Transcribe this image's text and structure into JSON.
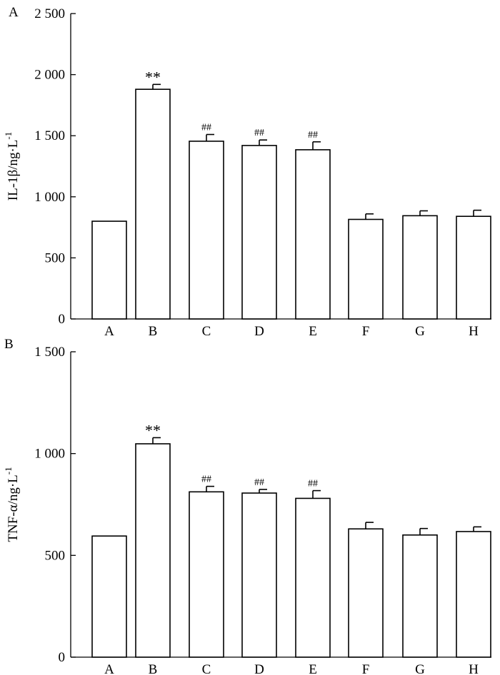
{
  "chart_data": [
    {
      "panel": "A",
      "type": "bar",
      "ylabel": "IL-1β/ng·L",
      "ylabel_superscript": "-1",
      "ylim": [
        0,
        2500
      ],
      "yticks": [
        0,
        500,
        1000,
        1500,
        2000,
        2500
      ],
      "ytick_labels": [
        "0",
        "500",
        "1 000",
        "1 500",
        "2 000",
        "2 500"
      ],
      "categories": [
        "A",
        "B",
        "C",
        "D",
        "E",
        "F",
        "G",
        "H"
      ],
      "values": [
        800,
        1880,
        1455,
        1420,
        1385,
        815,
        845,
        840
      ],
      "errors": [
        0,
        40,
        55,
        45,
        65,
        45,
        40,
        50
      ],
      "annotations": [
        "",
        "**",
        "##",
        "##",
        "##",
        "",
        "",
        ""
      ],
      "grid": false
    },
    {
      "panel": "B",
      "type": "bar",
      "ylabel": "TNF-α/ng·L",
      "ylabel_superscript": "-1",
      "ylim": [
        0,
        1500
      ],
      "yticks": [
        0,
        500,
        1000,
        1500
      ],
      "ytick_labels": [
        "0",
        "500",
        "1 000",
        "1 500"
      ],
      "categories": [
        "A",
        "B",
        "C",
        "D",
        "E",
        "F",
        "G",
        "H"
      ],
      "values": [
        595,
        1048,
        812,
        806,
        780,
        630,
        600,
        617
      ],
      "errors": [
        0,
        30,
        27,
        18,
        38,
        32,
        32,
        23
      ],
      "annotations": [
        "",
        "**",
        "##",
        "##",
        "##",
        "",
        "",
        ""
      ],
      "grid": false
    }
  ]
}
